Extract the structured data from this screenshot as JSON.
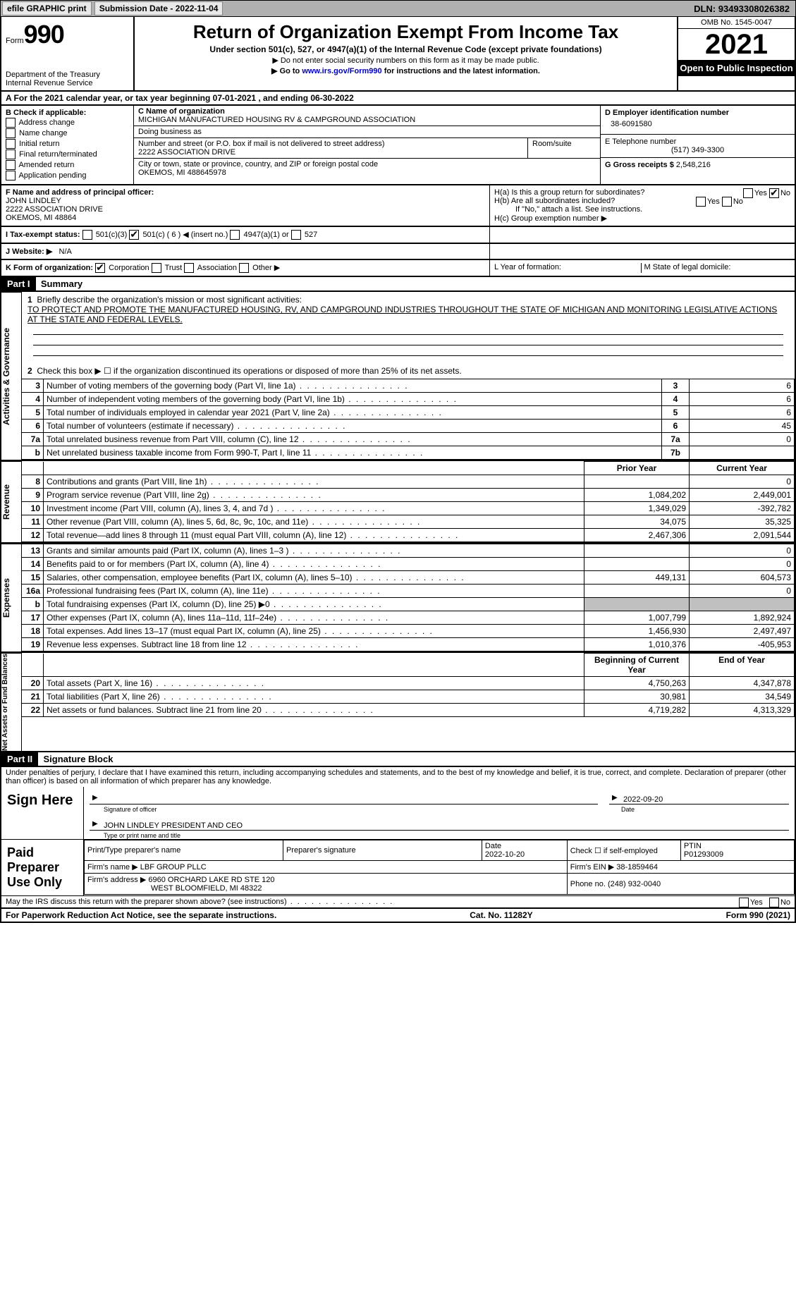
{
  "topbar": {
    "efile": "efile GRAPHIC print",
    "submission_label": "Submission Date - ",
    "submission_date": "2022-11-04",
    "dln_label": "DLN: ",
    "dln": "93493308026382"
  },
  "head": {
    "form_prefix": "Form",
    "form_num": "990",
    "dept": "Department of the Treasury",
    "irs": "Internal Revenue Service",
    "title": "Return of Organization Exempt From Income Tax",
    "sub": "Under section 501(c), 527, or 4947(a)(1) of the Internal Revenue Code (except private foundations)",
    "arrow1": "▶ Do not enter social security numbers on this form as it may be made public.",
    "arrow2_pre": "▶ Go to ",
    "arrow2_link": "www.irs.gov/Form990",
    "arrow2_post": " for instructions and the latest information.",
    "omb": "OMB No. 1545-0047",
    "year": "2021",
    "open": "Open to Public Inspection"
  },
  "period": {
    "line": "A For the 2021 calendar year, or tax year beginning 07-01-2021   , and ending 06-30-2022"
  },
  "boxB": {
    "title": "B Check if applicable:",
    "opts": [
      "Address change",
      "Name change",
      "Initial return",
      "Final return/terminated",
      "Amended return",
      "Application pending"
    ]
  },
  "boxC": {
    "name_label": "C Name of organization",
    "name": "MICHIGAN MANUFACTURED HOUSING RV & CAMPGROUND ASSOCIATION",
    "dba_label": "Doing business as",
    "street_label": "Number and street (or P.O. box if mail is not delivered to street address)",
    "street": "2222 ASSOCIATION DRIVE",
    "suite_label": "Room/suite",
    "city_label": "City or town, state or province, country, and ZIP or foreign postal code",
    "city": "OKEMOS, MI  488645978"
  },
  "boxD": {
    "ein_label": "D Employer identification number",
    "ein": "38-6091580",
    "phone_label": "E Telephone number",
    "phone": "(517) 349-3300",
    "gross_label": "G Gross receipts $ ",
    "gross": "2,548,216"
  },
  "boxF": {
    "label": "F  Name and address of principal officer:",
    "name": "JOHN LINDLEY",
    "addr1": "2222 ASSOCIATION DRIVE",
    "addr2": "OKEMOS, MI  48864"
  },
  "boxH": {
    "ha": "H(a)  Is this a group return for subordinates?",
    "hb": "H(b)  Are all subordinates included?",
    "hb_note": "If \"No,\" attach a list. See instructions.",
    "hc": "H(c)  Group exemption number ▶",
    "yes": "Yes",
    "no": "No"
  },
  "boxI": {
    "label": "I    Tax-exempt status:",
    "o1": "501(c)(3)",
    "o2": "501(c) ( 6 ) ◀ (insert no.)",
    "o3": "4947(a)(1) or",
    "o4": "527"
  },
  "boxJ": {
    "label": "J    Website: ▶",
    "val": "N/A"
  },
  "boxK": {
    "label": "K Form of organization:",
    "o1": "Corporation",
    "o2": "Trust",
    "o3": "Association",
    "o4": "Other ▶"
  },
  "boxL": {
    "label": "L Year of formation:"
  },
  "boxM": {
    "label": "M State of legal domicile:"
  },
  "part1": {
    "bar": "Part I",
    "title": "Summary"
  },
  "summary": {
    "l1_label": "Briefly describe the organization's mission or most significant activities:",
    "l1": "TO PROTECT AND PROMOTE THE MANUFACTURED HOUSING, RV, AND CAMPGROUND INDUSTRIES THROUGHOUT THE STATE OF MICHIGAN AND MONITORING LEGISLATIVE ACTIONS AT THE STATE AND FEDERAL LEVELS.",
    "l2": "Check this box ▶ ☐  if the organization discontinued its operations or disposed of more than 25% of its net assets.",
    "rows": [
      {
        "n": "3",
        "t": "Number of voting members of the governing body (Part VI, line 1a)",
        "b": "3",
        "v": "6"
      },
      {
        "n": "4",
        "t": "Number of independent voting members of the governing body (Part VI, line 1b)",
        "b": "4",
        "v": "6"
      },
      {
        "n": "5",
        "t": "Total number of individuals employed in calendar year 2021 (Part V, line 2a)",
        "b": "5",
        "v": "6"
      },
      {
        "n": "6",
        "t": "Total number of volunteers (estimate if necessary)",
        "b": "6",
        "v": "45"
      },
      {
        "n": "7a",
        "t": "Total unrelated business revenue from Part VIII, column (C), line 12",
        "b": "7a",
        "v": "0"
      },
      {
        "n": "b",
        "t": "Net unrelated business taxable income from Form 990-T, Part I, line 11",
        "b": "7b",
        "v": ""
      }
    ],
    "hdr_prior": "Prior Year",
    "hdr_curr": "Current Year",
    "rev": [
      {
        "n": "8",
        "t": "Contributions and grants (Part VIII, line 1h)",
        "p": "",
        "c": "0"
      },
      {
        "n": "9",
        "t": "Program service revenue (Part VIII, line 2g)",
        "p": "1,084,202",
        "c": "2,449,001"
      },
      {
        "n": "10",
        "t": "Investment income (Part VIII, column (A), lines 3, 4, and 7d )",
        "p": "1,349,029",
        "c": "-392,782"
      },
      {
        "n": "11",
        "t": "Other revenue (Part VIII, column (A), lines 5, 6d, 8c, 9c, 10c, and 11e)",
        "p": "34,075",
        "c": "35,325"
      },
      {
        "n": "12",
        "t": "Total revenue—add lines 8 through 11 (must equal Part VIII, column (A), line 12)",
        "p": "2,467,306",
        "c": "2,091,544"
      }
    ],
    "exp": [
      {
        "n": "13",
        "t": "Grants and similar amounts paid (Part IX, column (A), lines 1–3 )",
        "p": "",
        "c": "0"
      },
      {
        "n": "14",
        "t": "Benefits paid to or for members (Part IX, column (A), line 4)",
        "p": "",
        "c": "0"
      },
      {
        "n": "15",
        "t": "Salaries, other compensation, employee benefits (Part IX, column (A), lines 5–10)",
        "p": "449,131",
        "c": "604,573"
      },
      {
        "n": "16a",
        "t": "Professional fundraising fees (Part IX, column (A), line 11e)",
        "p": "",
        "c": "0"
      },
      {
        "n": "b",
        "t": "Total fundraising expenses (Part IX, column (D), line 25) ▶0",
        "p": "shade",
        "c": "shade"
      },
      {
        "n": "17",
        "t": "Other expenses (Part IX, column (A), lines 11a–11d, 11f–24e)",
        "p": "1,007,799",
        "c": "1,892,924"
      },
      {
        "n": "18",
        "t": "Total expenses. Add lines 13–17 (must equal Part IX, column (A), line 25)",
        "p": "1,456,930",
        "c": "2,497,497"
      },
      {
        "n": "19",
        "t": "Revenue less expenses. Subtract line 18 from line 12",
        "p": "1,010,376",
        "c": "-405,953"
      }
    ],
    "hdr_beg": "Beginning of Current Year",
    "hdr_end": "End of Year",
    "net": [
      {
        "n": "20",
        "t": "Total assets (Part X, line 16)",
        "p": "4,750,263",
        "c": "4,347,878"
      },
      {
        "n": "21",
        "t": "Total liabilities (Part X, line 26)",
        "p": "30,981",
        "c": "34,549"
      },
      {
        "n": "22",
        "t": "Net assets or fund balances. Subtract line 21 from line 20",
        "p": "4,719,282",
        "c": "4,313,329"
      }
    ],
    "side_act": "Activities & Governance",
    "side_rev": "Revenue",
    "side_exp": "Expenses",
    "side_net": "Net Assets or Fund Balances"
  },
  "part2": {
    "bar": "Part II",
    "title": "Signature Block",
    "decl": "Under penalties of perjury, I declare that I have examined this return, including accompanying schedules and statements, and to the best of my knowledge and belief, it is true, correct, and complete. Declaration of preparer (other than officer) is based on all information of which preparer has any knowledge."
  },
  "sign": {
    "here": "Sign Here",
    "sig_label": "Signature of officer",
    "date": "2022-09-20",
    "name": "JOHN LINDLEY  PRESIDENT AND CEO",
    "name_label": "Type or print name and title"
  },
  "prep": {
    "title": "Paid Preparer Use Only",
    "pname": "Print/Type preparer's name",
    "psig": "Preparer's signature",
    "pdate_l": "Date",
    "pdate": "2022-10-20",
    "pself": "Check ☐ if self-employed",
    "ptin_l": "PTIN",
    "ptin": "P01293009",
    "fname_l": "Firm's name    ▶",
    "fname": "LBF GROUP PLLC",
    "fein_l": "Firm's EIN ▶",
    "fein": "38-1859464",
    "faddr_l": "Firm's address ▶",
    "faddr1": "6960 ORCHARD LAKE RD STE 120",
    "faddr2": "WEST BLOOMFIELD, MI  48322",
    "fphone_l": "Phone no.",
    "fphone": "(248) 932-0040"
  },
  "discuss": "May the IRS discuss this return with the preparer shown above? (see instructions)",
  "footer": {
    "left": "For Paperwork Reduction Act Notice, see the separate instructions.",
    "mid": "Cat. No. 11282Y",
    "right": "Form 990 (2021)"
  }
}
